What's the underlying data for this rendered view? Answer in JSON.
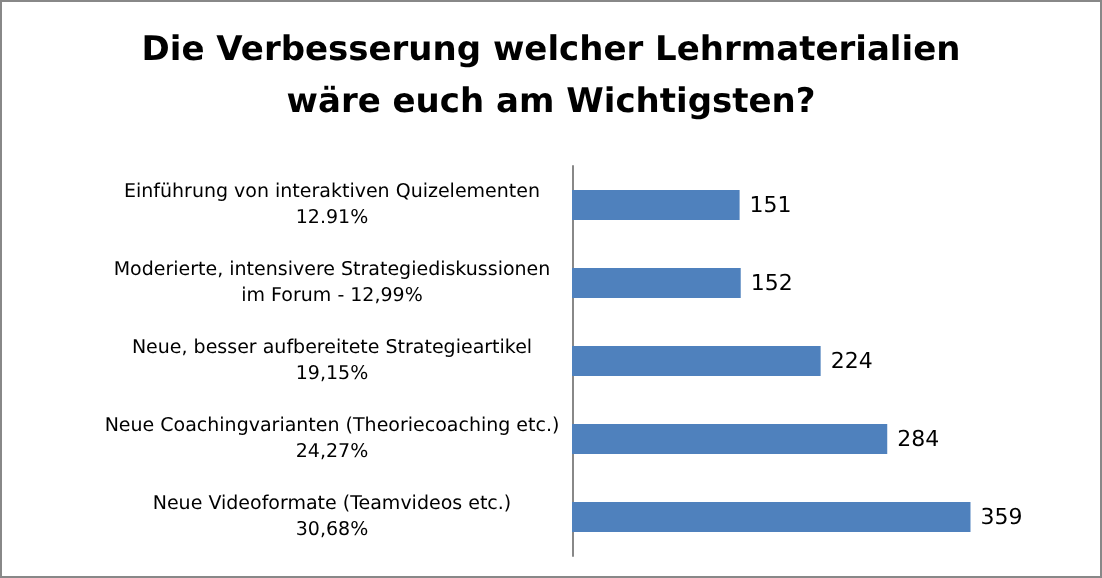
{
  "chart_data": {
    "type": "bar",
    "orientation": "horizontal",
    "title": "Die Verbesserung welcher Lehrmaterialien\nwäre euch am Wichtigsten?",
    "categories": [
      "Einführung von interaktiven Quizelementen\n12.91%",
      "Moderierte, intensivere Strategiediskussionen\nim Forum - 12,99%",
      "Neue, besser aufbereitete Strategieartikel\n19,15%",
      "Neue Coachingvarianten (Theoriecoaching etc.)\n24,27%",
      "Neue Videoformate (Teamvideos etc.)\n30,68%"
    ],
    "values": [
      151,
      152,
      224,
      284,
      359
    ],
    "color": "#4f81bd",
    "data_labels": true
  }
}
